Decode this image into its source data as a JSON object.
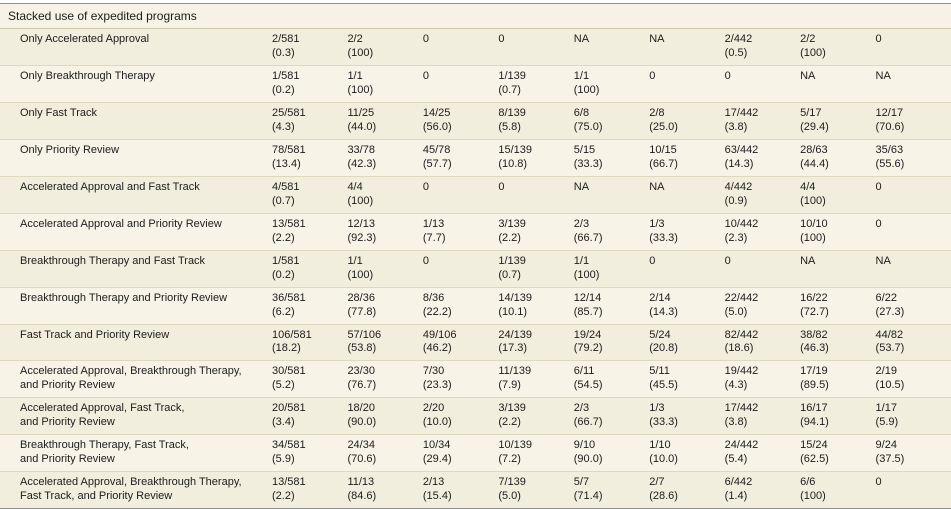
{
  "table": {
    "section_header": "Stacked use of expedited programs",
    "rows": [
      {
        "label": "Only Accelerated Approval",
        "cells": [
          "2/581\n(0.3)",
          "2/2\n(100)",
          "0",
          "0",
          "NA",
          "NA",
          "2/442\n(0.5)",
          "2/2\n(100)",
          "0"
        ]
      },
      {
        "label": "Only Breakthrough Therapy",
        "cells": [
          "1/581\n(0.2)",
          "1/1\n(100)",
          "0",
          "1/139\n(0.7)",
          "1/1\n(100)",
          "0",
          "0",
          "NA",
          "NA"
        ]
      },
      {
        "label": "Only Fast Track",
        "cells": [
          "25/581\n(4.3)",
          "11/25\n(44.0)",
          "14/25\n(56.0)",
          "8/139\n(5.8)",
          "6/8\n(75.0)",
          "2/8\n(25.0)",
          "17/442\n(3.8)",
          "5/17\n(29.4)",
          "12/17\n(70.6)"
        ]
      },
      {
        "label": "Only Priority Review",
        "cells": [
          "78/581\n(13.4)",
          "33/78\n(42.3)",
          "45/78\n(57.7)",
          "15/139\n(10.8)",
          "5/15\n(33.3)",
          "10/15\n(66.7)",
          "63/442\n(14.3)",
          "28/63\n(44.4)",
          "35/63\n(55.6)"
        ]
      },
      {
        "label": "Accelerated Approval and Fast Track",
        "cells": [
          "4/581\n(0.7)",
          "4/4\n(100)",
          "0",
          "0",
          "NA",
          "NA",
          "4/442\n(0.9)",
          "4/4\n(100)",
          "0"
        ]
      },
      {
        "label": "Accelerated Approval and Priority Review",
        "cells": [
          "13/581\n(2.2)",
          "12/13\n(92.3)",
          "1/13\n(7.7)",
          "3/139\n(2.2)",
          "2/3\n(66.7)",
          "1/3\n(33.3)",
          "10/442\n(2.3)",
          "10/10\n(100)",
          "0"
        ]
      },
      {
        "label": "Breakthrough Therapy and Fast Track",
        "cells": [
          "1/581\n(0.2)",
          "1/1\n(100)",
          "0",
          "1/139\n(0.7)",
          "1/1\n(100)",
          "0",
          "0",
          "NA",
          "NA"
        ]
      },
      {
        "label": "Breakthrough Therapy and Priority Review",
        "cells": [
          "36/581\n(6.2)",
          "28/36\n(77.8)",
          "8/36\n(22.2)",
          "14/139\n(10.1)",
          "12/14\n(85.7)",
          "2/14\n(14.3)",
          "22/442\n(5.0)",
          "16/22\n(72.7)",
          "6/22\n(27.3)"
        ]
      },
      {
        "label": "Fast Track and Priority Review",
        "cells": [
          "106/581\n(18.2)",
          "57/106\n(53.8)",
          "49/106\n(46.2)",
          "24/139\n(17.3)",
          "19/24\n(79.2)",
          "5/24\n(20.8)",
          "82/442\n(18.6)",
          "38/82\n(46.3)",
          "44/82\n(53.7)"
        ]
      },
      {
        "label": "Accelerated Approval, Breakthrough Therapy,\nand Priority Review",
        "cells": [
          "30/581\n(5.2)",
          "23/30\n(76.7)",
          "7/30\n(23.3)",
          "11/139\n(7.9)",
          "6/11\n(54.5)",
          "5/11\n(45.5)",
          "19/442\n(4.3)",
          "17/19\n(89.5)",
          "2/19\n(10.5)"
        ]
      },
      {
        "label": "Accelerated Approval, Fast Track,\nand Priority Review",
        "cells": [
          "20/581\n(3.4)",
          "18/20\n(90.0)",
          "2/20\n(10.0)",
          "3/139\n(2.2)",
          "2/3\n(66.7)",
          "1/3\n(33.3)",
          "17/442\n(3.8)",
          "16/17\n(94.1)",
          "1/17\n(5.9)"
        ]
      },
      {
        "label": "Breakthrough Therapy, Fast Track,\nand Priority Review",
        "cells": [
          "34/581\n(5.9)",
          "24/34\n(70.6)",
          "10/34\n(29.4)",
          "10/139\n(7.2)",
          "9/10\n(90.0)",
          "1/10\n(10.0)",
          "24/442\n(5.4)",
          "15/24\n(62.5)",
          "9/24\n(37.5)"
        ]
      },
      {
        "label": "Accelerated Approval, Breakthrough Therapy,\nFast Track, and Priority Review",
        "cells": [
          "13/581\n(2.2)",
          "11/13\n(84.6)",
          "2/13\n(15.4)",
          "7/139\n(5.0)",
          "5/7\n(71.4)",
          "2/7\n(28.6)",
          "6/442\n(1.4)",
          "6/6\n(100)",
          "0"
        ]
      }
    ]
  }
}
